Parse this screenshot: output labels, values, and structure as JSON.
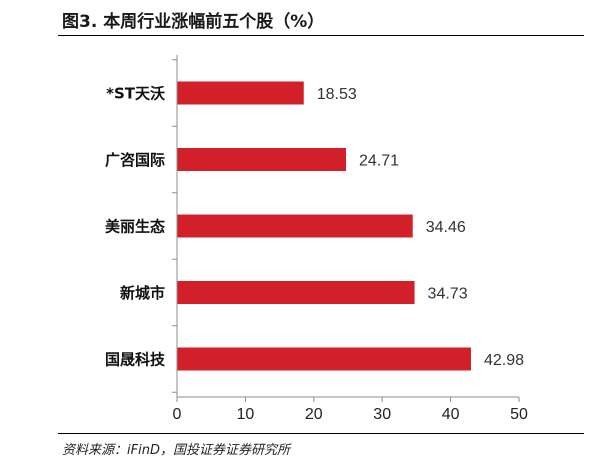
{
  "title": "图3. 本周行业涨幅前五个股（%）",
  "source": "资料来源：iFinD，国投证券证券研究所",
  "colors": {
    "bar": "#d2202b",
    "axis": "#8c8c8c"
  },
  "chart_data": {
    "type": "bar",
    "orientation": "horizontal",
    "title": "图3. 本周行业涨幅前五个股（%）",
    "categories": [
      "*ST天沃",
      "广咨国际",
      "美丽生态",
      "新城市",
      "国晟科技"
    ],
    "values": [
      18.53,
      24.71,
      34.46,
      34.73,
      42.98
    ],
    "xlim": [
      0,
      50
    ],
    "xticks": [
      0,
      10,
      20,
      30,
      40,
      50
    ],
    "grid": false,
    "legend": "none"
  }
}
